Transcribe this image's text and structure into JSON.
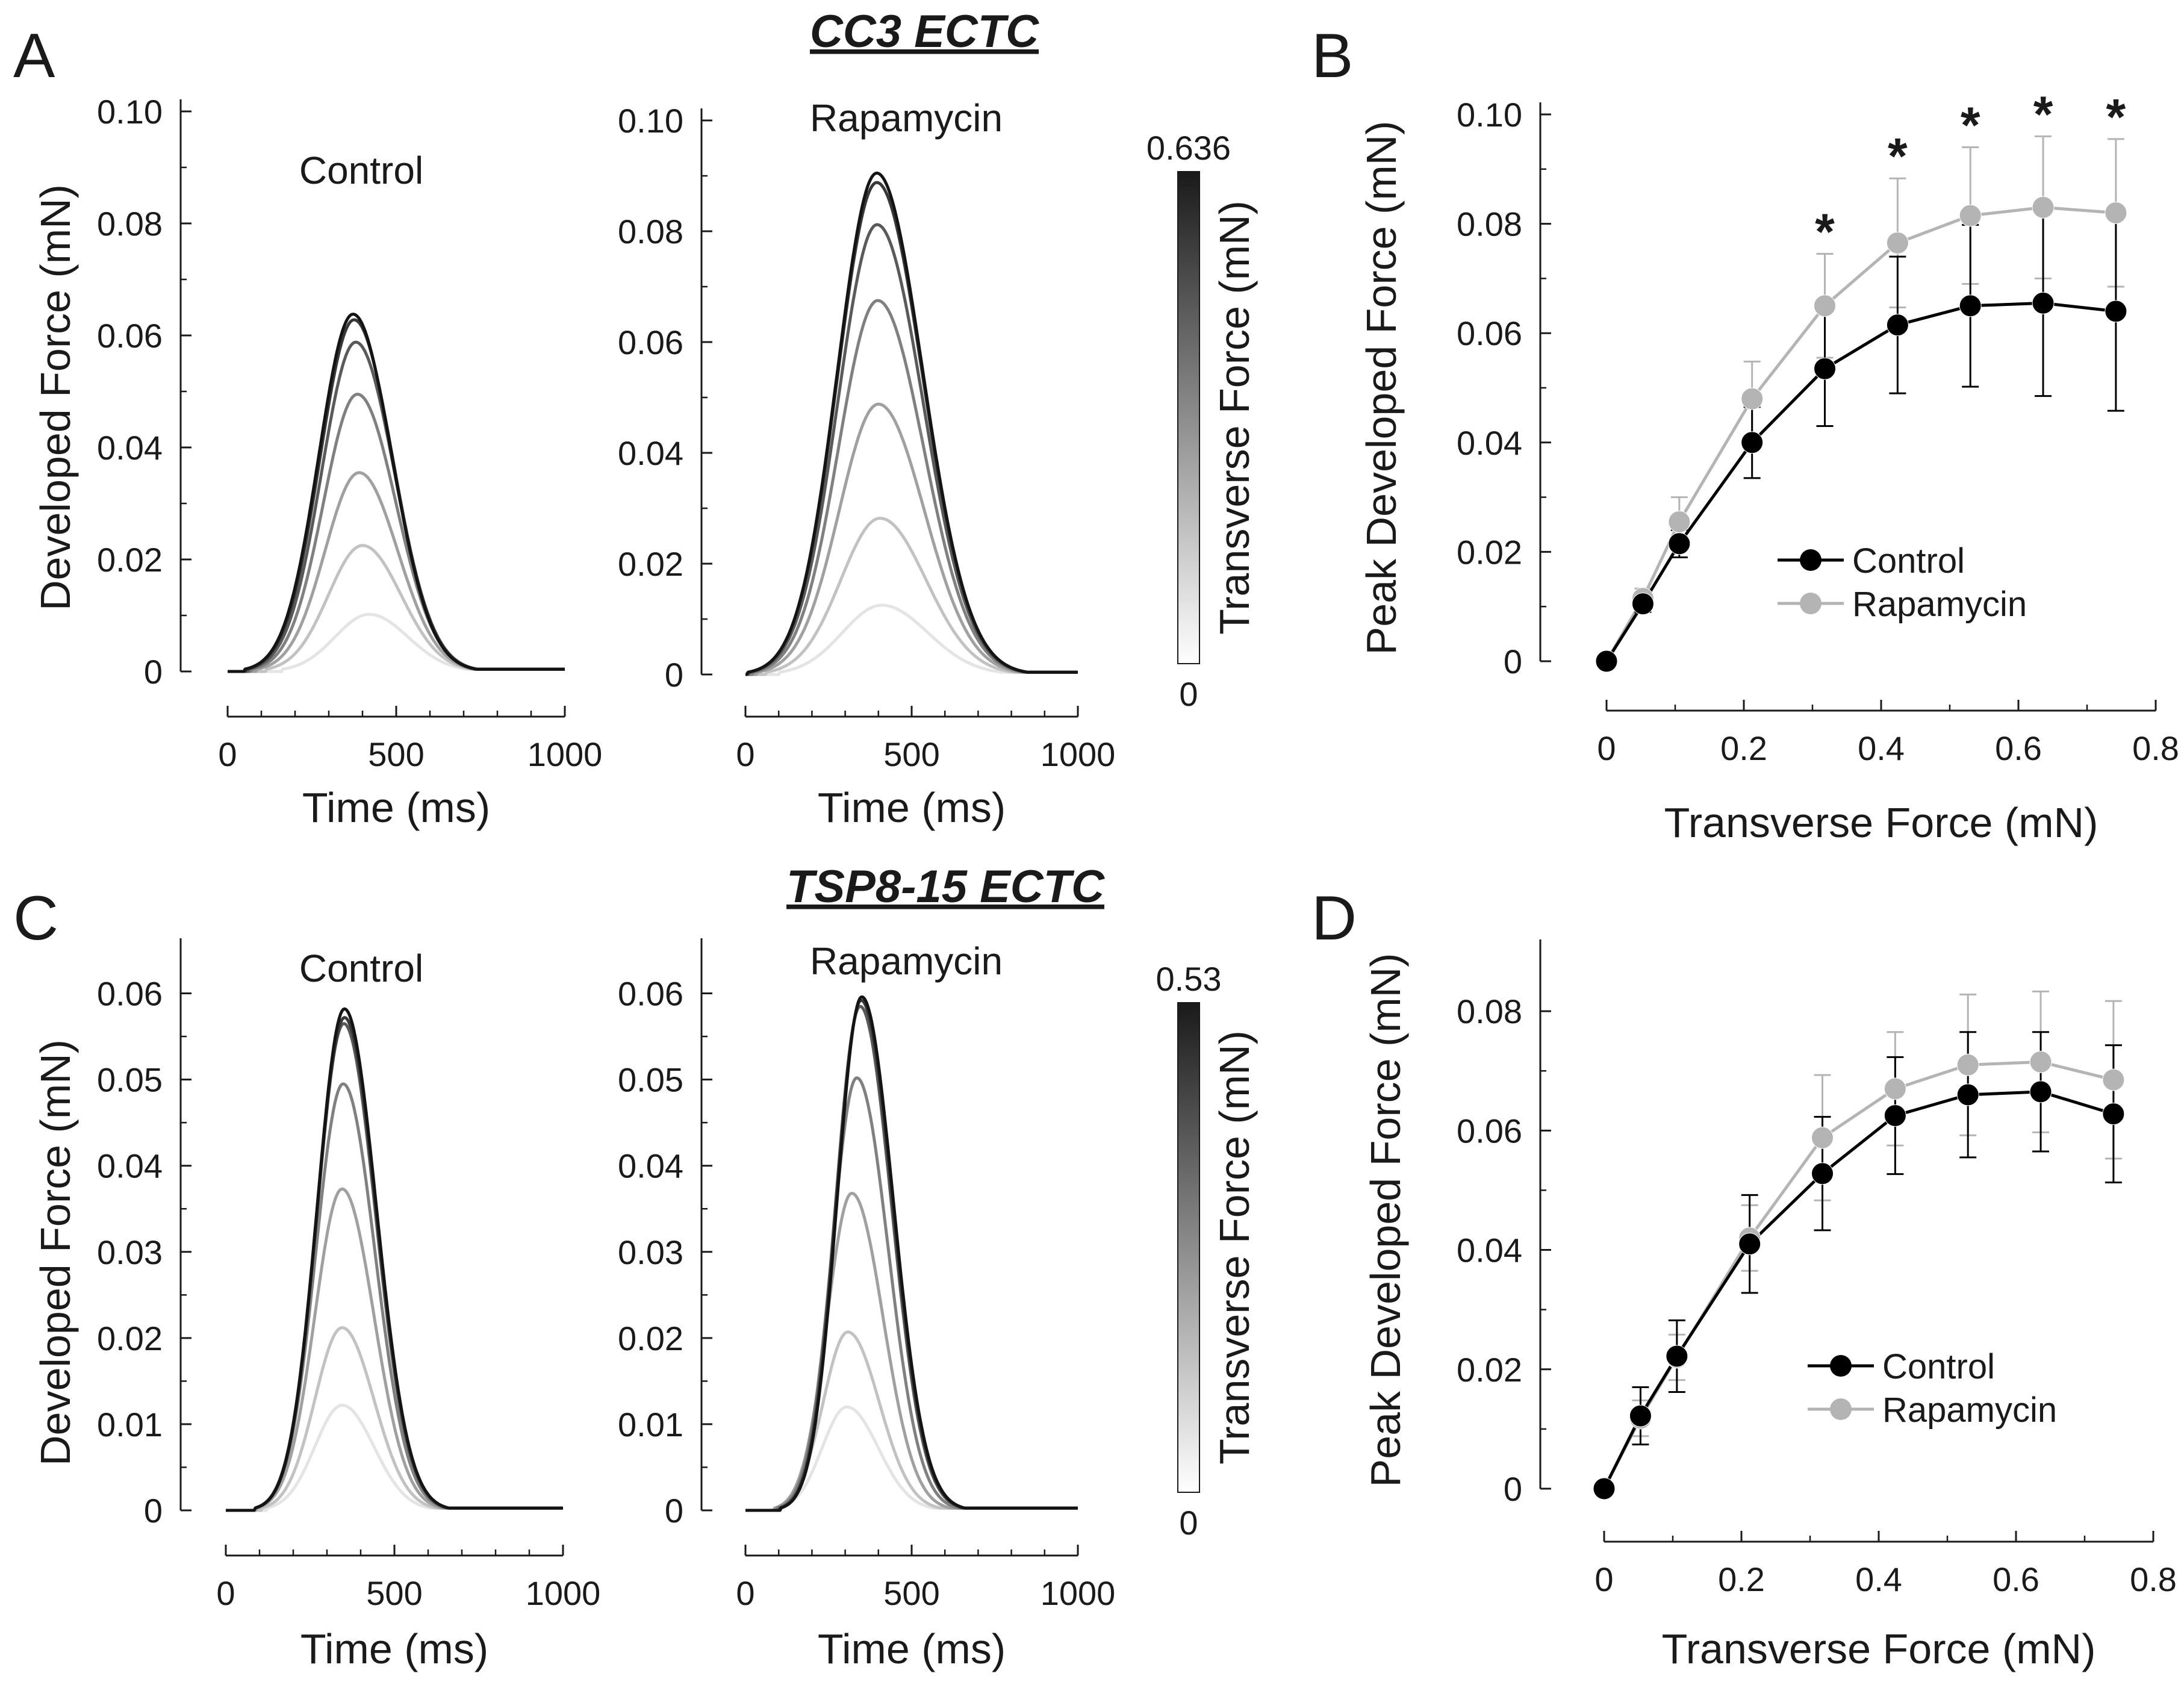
{
  "figure": {
    "titles": {
      "top": "CC3  ECTC",
      "bottom": "TSP8-15  ECTC"
    },
    "panel_letters": [
      "A",
      "B",
      "C",
      "D"
    ],
    "colors": {
      "control": "#000000",
      "rapamycin": "#b4b4b4",
      "axis": "#1a1a1a"
    }
  },
  "chart_data": [
    {
      "id": "A-control",
      "type": "line",
      "title": "Control",
      "xlabel": "Time (ms)",
      "ylabel": "Developed Force (mN)",
      "xlim": [
        0,
        1000
      ],
      "ylim": [
        0,
        0.1
      ],
      "x_ticks": [
        0,
        500,
        1000
      ],
      "x_tick_labels": [
        "0",
        "500",
        "1000"
      ],
      "y_ticks": [
        0,
        0.02,
        0.04,
        0.06,
        0.08,
        0.1
      ],
      "y_tick_labels": [
        "0",
        "0.02",
        "0.04",
        "0.06",
        "0.08",
        "0.10"
      ],
      "trace_shape": {
        "onset": 0,
        "rise": 375,
        "width_left": 150,
        "width_right": 170
      },
      "series": [
        {
          "name": "trace-1",
          "peak": 0.0102,
          "peak_time": 420,
          "gray": "#e4e4e4"
        },
        {
          "name": "trace-2",
          "peak": 0.0225,
          "peak_time": 400,
          "gray": "#c2c2c2"
        },
        {
          "name": "trace-3",
          "peak": 0.0355,
          "peak_time": 390,
          "gray": "#a0a0a0"
        },
        {
          "name": "trace-4",
          "peak": 0.0495,
          "peak_time": 385,
          "gray": "#808080"
        },
        {
          "name": "trace-5",
          "peak": 0.0588,
          "peak_time": 380,
          "gray": "#5a5a5a"
        },
        {
          "name": "trace-6",
          "peak": 0.0628,
          "peak_time": 375,
          "gray": "#383838"
        },
        {
          "name": "trace-7",
          "peak": 0.0638,
          "peak_time": 372,
          "gray": "#141414"
        }
      ]
    },
    {
      "id": "A-rapamycin",
      "type": "line",
      "title": "Rapamycin",
      "xlabel": "Time (ms)",
      "ylabel": "",
      "xlim": [
        0,
        1000
      ],
      "ylim": [
        0,
        0.1
      ],
      "x_ticks": [
        0,
        500,
        1000
      ],
      "x_tick_labels": [
        "0",
        "500",
        "1000"
      ],
      "y_ticks": [
        0,
        0.02,
        0.04,
        0.06,
        0.08,
        0.1
      ],
      "y_tick_labels": [
        "0",
        "0.02",
        "0.04",
        "0.06",
        "0.08",
        "0.10"
      ],
      "trace_shape": {
        "width_left": 175,
        "width_right": 205
      },
      "series": [
        {
          "name": "trace-1",
          "peak": 0.0125,
          "peak_time": 410,
          "gray": "#e4e4e4"
        },
        {
          "name": "trace-2",
          "peak": 0.0282,
          "peak_time": 405,
          "gray": "#c2c2c2"
        },
        {
          "name": "trace-3",
          "peak": 0.0488,
          "peak_time": 400,
          "gray": "#a0a0a0"
        },
        {
          "name": "trace-4",
          "peak": 0.0675,
          "peak_time": 398,
          "gray": "#808080"
        },
        {
          "name": "trace-5",
          "peak": 0.0812,
          "peak_time": 396,
          "gray": "#5a5a5a"
        },
        {
          "name": "trace-6",
          "peak": 0.0888,
          "peak_time": 395,
          "gray": "#383838"
        },
        {
          "name": "trace-7",
          "peak": 0.0905,
          "peak_time": 395,
          "gray": "#141414"
        }
      ]
    },
    {
      "id": "A-colorbar",
      "type": "heatmap",
      "title": "",
      "label": "Transverse Force (mN)",
      "min": 0,
      "max": 0.636,
      "min_label": "0",
      "max_label": "0.636",
      "color_low": "#ffffff",
      "color_high": "#1a1a1a"
    },
    {
      "id": "B",
      "type": "line",
      "title": "",
      "xlabel": "Transverse Force (mN)",
      "ylabel": "Peak Developed Force (mN)",
      "xlim": [
        0,
        0.8
      ],
      "ylim": [
        0,
        0.1
      ],
      "x_ticks": [
        0,
        0.2,
        0.4,
        0.6,
        0.8
      ],
      "x_tick_labels": [
        "0",
        "0.2",
        "0.4",
        "0.6",
        "0.8"
      ],
      "y_ticks": [
        0,
        0.02,
        0.04,
        0.06,
        0.08,
        0.1
      ],
      "y_tick_labels": [
        "0",
        "0.02",
        "0.04",
        "0.06",
        "0.08",
        "0.10"
      ],
      "x": [
        0,
        0.053,
        0.106,
        0.212,
        0.318,
        0.424,
        0.53,
        0.636,
        0.742
      ],
      "series": [
        {
          "name": "Control",
          "color": "#000000",
          "values": [
            0,
            0.0105,
            0.0215,
            0.04,
            0.0535,
            0.0615,
            0.065,
            0.0655,
            0.064
          ],
          "errors": [
            0,
            0.0015,
            0.0025,
            0.0065,
            0.0105,
            0.0125,
            0.0148,
            0.017,
            0.0182
          ]
        },
        {
          "name": "Rapamycin",
          "color": "#b4b4b4",
          "values": [
            0,
            0.0115,
            0.0255,
            0.048,
            0.065,
            0.0765,
            0.0815,
            0.083,
            0.082
          ],
          "errors": [
            0,
            0.0018,
            0.0045,
            0.0068,
            0.0095,
            0.0118,
            0.0125,
            0.013,
            0.0135
          ]
        }
      ],
      "significance_marker": "*",
      "significant_x": [
        0.318,
        0.424,
        0.53,
        0.636,
        0.742
      ],
      "legend_position": "center-right"
    },
    {
      "id": "C-control",
      "type": "line",
      "title": "Control",
      "xlabel": "Time (ms)",
      "ylabel": "Developed Force (mN)",
      "xlim": [
        0,
        1000
      ],
      "ylim": [
        0,
        0.065
      ],
      "x_ticks": [
        0,
        500,
        1000
      ],
      "x_tick_labels": [
        "0",
        "500",
        "1000"
      ],
      "y_ticks": [
        0,
        0.01,
        0.02,
        0.03,
        0.04,
        0.05,
        0.06
      ],
      "y_tick_labels": [
        "0",
        "0.01",
        "0.02",
        "0.03",
        "0.04",
        "0.05",
        "0.06"
      ],
      "trace_shape": {
        "width_left": 120,
        "width_right": 140
      },
      "series": [
        {
          "name": "trace-1",
          "peak": 0.0122,
          "peak_time": 345,
          "gray": "#e4e4e4"
        },
        {
          "name": "trace-2",
          "peak": 0.0212,
          "peak_time": 345,
          "gray": "#c2c2c2"
        },
        {
          "name": "trace-3",
          "peak": 0.0373,
          "peak_time": 345,
          "gray": "#a0a0a0"
        },
        {
          "name": "trace-4",
          "peak": 0.0495,
          "peak_time": 348,
          "gray": "#808080"
        },
        {
          "name": "trace-5",
          "peak": 0.0565,
          "peak_time": 350,
          "gray": "#5a5a5a"
        },
        {
          "name": "trace-6",
          "peak": 0.0572,
          "peak_time": 352,
          "gray": "#383838"
        },
        {
          "name": "trace-7",
          "peak": 0.0582,
          "peak_time": 352,
          "gray": "#141414"
        }
      ]
    },
    {
      "id": "C-rapamycin",
      "type": "line",
      "title": "Rapamycin",
      "xlabel": "Time (ms)",
      "ylabel": "",
      "xlim": [
        0,
        1000
      ],
      "ylim": [
        0,
        0.065
      ],
      "x_ticks": [
        0,
        500,
        1000
      ],
      "x_tick_labels": [
        "0",
        "500",
        "1000"
      ],
      "y_ticks": [
        0,
        0.01,
        0.02,
        0.03,
        0.04,
        0.05,
        0.06
      ],
      "y_tick_labels": [
        "0",
        "0.01",
        "0.02",
        "0.03",
        "0.04",
        "0.05",
        "0.06"
      ],
      "trace_shape": {
        "width_left": 110,
        "width_right": 140
      },
      "series": [
        {
          "name": "trace-1",
          "peak": 0.012,
          "peak_time": 305,
          "gray": "#e4e4e4"
        },
        {
          "name": "trace-2",
          "peak": 0.0207,
          "peak_time": 308,
          "gray": "#c2c2c2"
        },
        {
          "name": "trace-3",
          "peak": 0.0368,
          "peak_time": 320,
          "gray": "#a0a0a0"
        },
        {
          "name": "trace-4",
          "peak": 0.0502,
          "peak_time": 335,
          "gray": "#808080"
        },
        {
          "name": "trace-5",
          "peak": 0.0585,
          "peak_time": 345,
          "gray": "#5a5a5a"
        },
        {
          "name": "trace-6",
          "peak": 0.0592,
          "peak_time": 348,
          "gray": "#383838"
        },
        {
          "name": "trace-7",
          "peak": 0.0596,
          "peak_time": 350,
          "gray": "#141414"
        }
      ]
    },
    {
      "id": "C-colorbar",
      "type": "heatmap",
      "title": "",
      "label": "Transverse Force (mN)",
      "min": 0,
      "max": 0.53,
      "min_label": "0",
      "max_label": "0.53",
      "color_low": "#ffffff",
      "color_high": "#1a1a1a"
    },
    {
      "id": "D",
      "type": "line",
      "title": "",
      "xlabel": "Transverse Force (mN)",
      "ylabel": "Peak Developed Force (mN)",
      "xlim": [
        0,
        0.8
      ],
      "ylim": [
        0,
        0.09
      ],
      "x_ticks": [
        0,
        0.2,
        0.4,
        0.6,
        0.8
      ],
      "x_tick_labels": [
        "0",
        "0.2",
        "0.4",
        "0.6",
        "0.8"
      ],
      "y_ticks": [
        0,
        0.02,
        0.04,
        0.06,
        0.08
      ],
      "y_tick_labels": [
        "0",
        "0.02",
        "0.04",
        "0.06",
        "0.08"
      ],
      "x": [
        0,
        0.053,
        0.106,
        0.212,
        0.318,
        0.424,
        0.53,
        0.636,
        0.742
      ],
      "series": [
        {
          "name": "Control",
          "color": "#000000",
          "values": [
            0,
            0.0122,
            0.0222,
            0.041,
            0.0528,
            0.0625,
            0.066,
            0.0665,
            0.0628
          ],
          "errors": [
            0,
            0.0048,
            0.006,
            0.0082,
            0.0095,
            0.0098,
            0.0105,
            0.01,
            0.0115
          ]
        },
        {
          "name": "Rapamycin",
          "color": "#b4b4b4",
          "values": [
            0,
            0.0118,
            0.022,
            0.042,
            0.0588,
            0.067,
            0.071,
            0.0715,
            0.0685
          ],
          "errors": [
            0,
            0.003,
            0.0038,
            0.0055,
            0.0105,
            0.0095,
            0.0118,
            0.0118,
            0.0132
          ]
        }
      ],
      "significance_marker": "",
      "significant_x": [],
      "legend_position": "center-right"
    }
  ]
}
